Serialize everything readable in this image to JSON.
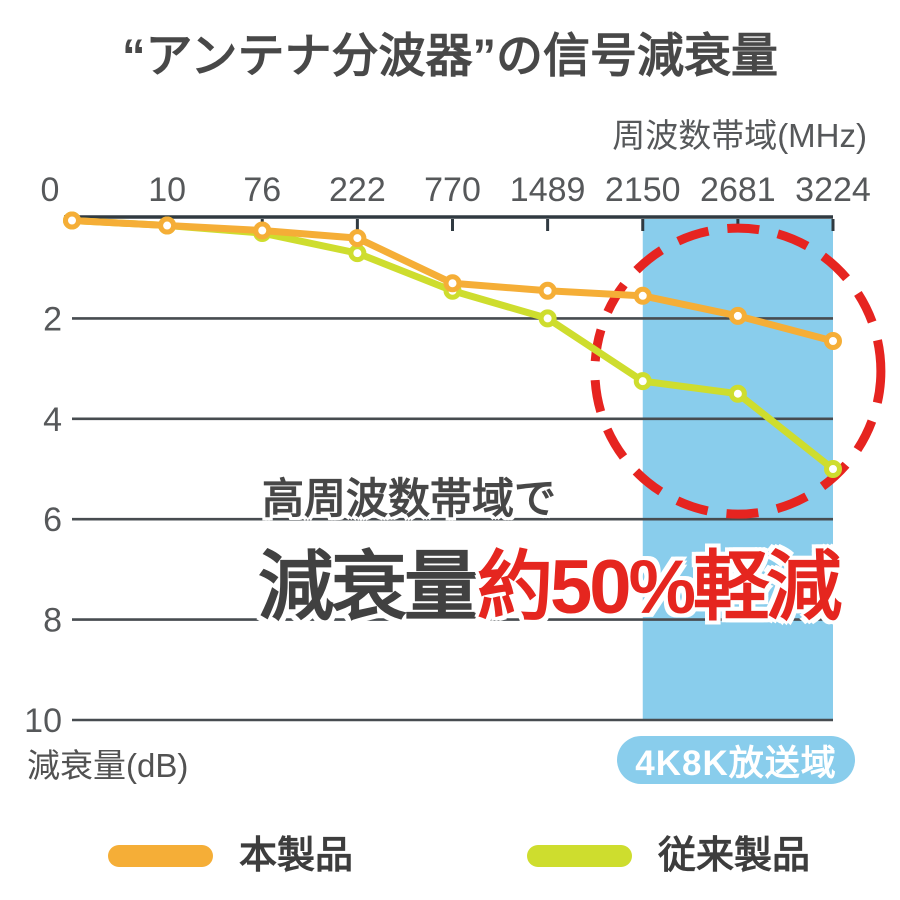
{
  "page": {
    "background": "#ffffff"
  },
  "header": {
    "title": "“アンテナ分波器”の信号減衰量",
    "frequency_axis_label": "周波数帯域(MHz)",
    "attenuation_axis_label": "減衰量(dB)"
  },
  "overlay": {
    "line1": "高周波数帯域で",
    "line2_gray": "減衰量",
    "line2_red": "約50%軽減",
    "gray_color": "#414141",
    "red_color": "#e5261f"
  },
  "badge": {
    "label": "4K8K放送域",
    "color": "#89cdec",
    "text_color": "#ffffff"
  },
  "legend": [
    {
      "label": "本製品",
      "color": "#f5ae37"
    },
    {
      "label": "従来製品",
      "color": "#cedd2e"
    }
  ],
  "chart_data": {
    "type": "line",
    "title": "“アンテナ分波器”の信号減衰量",
    "xlabel": "周波数帯域(MHz)",
    "ylabel": "減衰量(dB)",
    "categories": [
      "0",
      "10",
      "76",
      "222",
      "770",
      "1489",
      "2150",
      "2681",
      "3224"
    ],
    "y_ticks": [
      "2",
      "4",
      "6",
      "8",
      "10"
    ],
    "ylim": [
      0,
      10
    ],
    "y_axis_inverted_downward": true,
    "grid": "horizontal",
    "legend_position": "bottom",
    "series": [
      {
        "name": "本製品",
        "color": "#f5ae37",
        "values": [
          0.05,
          0.15,
          0.25,
          0.4,
          1.3,
          1.45,
          1.55,
          1.95,
          2.45
        ]
      },
      {
        "name": "従来製品",
        "color": "#cedd2e",
        "values": [
          0.05,
          0.15,
          0.3,
          0.7,
          1.45,
          2.0,
          3.25,
          3.5,
          5.0
        ]
      }
    ],
    "highlight_band": {
      "label": "4K8K放送域",
      "from_category": "2150",
      "to_category": "3224",
      "color": "#89cdec"
    },
    "annotation_circle": {
      "center_category": "2681",
      "center_value": 3.05,
      "color": "#e62420",
      "style": "dashed"
    },
    "colors": {
      "axis": "#303a41",
      "gridline": "#474c50",
      "tick_label": "#56585a"
    }
  }
}
